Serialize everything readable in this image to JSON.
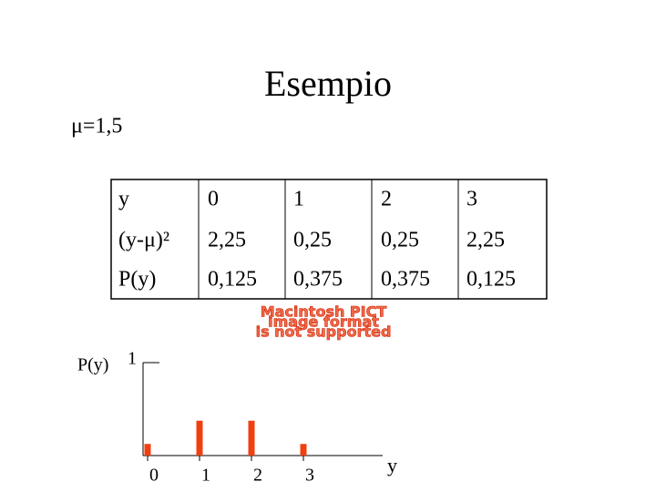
{
  "header": {
    "title": "Esempio"
  },
  "mean_label": "μ=1,5",
  "table": {
    "rows": [
      [
        "y",
        "0",
        "1",
        "2",
        "3"
      ],
      [
        "(y-μ)²",
        "2,25",
        "0,25",
        "0,25",
        "2,25"
      ],
      [
        "P(y)",
        "0,125",
        "0,375",
        "0,375",
        "0,125"
      ]
    ]
  },
  "placeholder": [
    "Macintosh PICT",
    "image format",
    "is not supported"
  ],
  "chart_data": {
    "type": "bar",
    "categories": [
      "0",
      "1",
      "2",
      "3"
    ],
    "values": [
      0.125,
      0.375,
      0.375,
      0.125
    ],
    "color": "#f04010",
    "ylim": [
      0,
      1
    ],
    "yticks": [
      1
    ],
    "y_label": "P(y)",
    "x_label": "y"
  }
}
